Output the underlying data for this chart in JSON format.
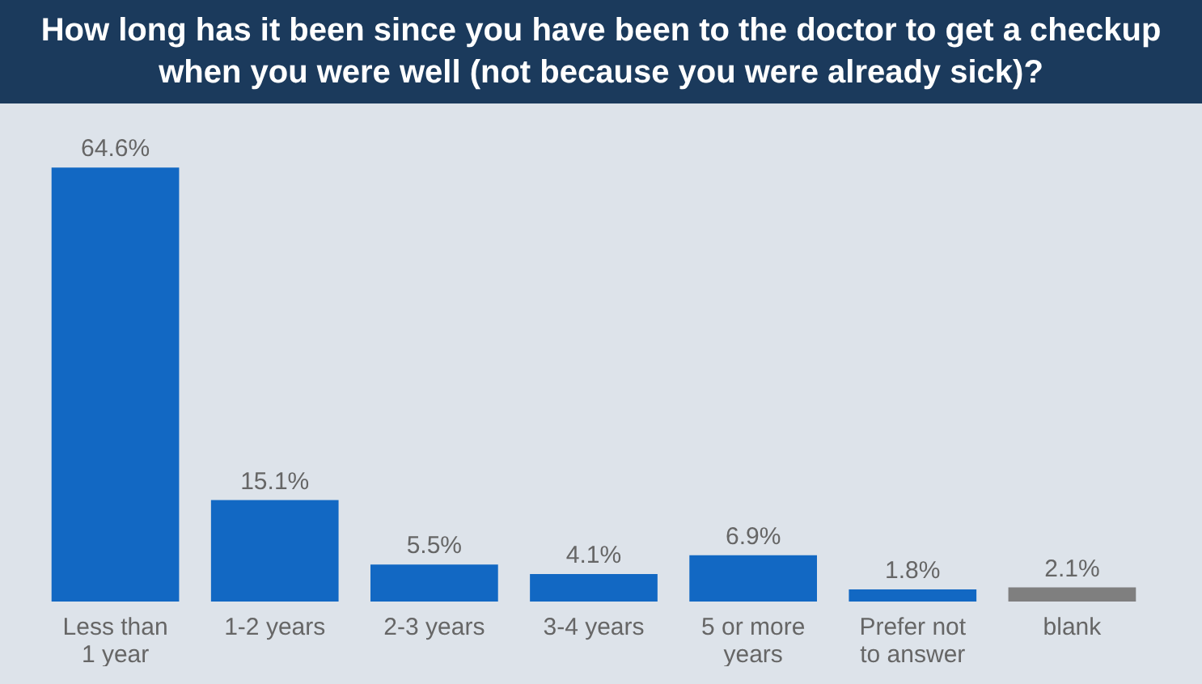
{
  "chart_data": {
    "type": "bar",
    "title": "How long has it been since you have been to the doctor to get a checkup when you were well (not because you were already sick)?",
    "categories": [
      "Less than 1 year",
      "1-2 years",
      "2-3 years",
      "3-4 years",
      "5 or more years",
      "Prefer not to answer",
      "blank"
    ],
    "values": [
      64.6,
      15.1,
      5.5,
      4.1,
      6.9,
      1.8,
      2.1
    ],
    "value_labels": [
      "64.6%",
      "15.1%",
      "5.5%",
      "4.1%",
      "6.9%",
      "1.8%",
      "2.1%"
    ],
    "colors": [
      "#1268c3",
      "#1268c3",
      "#1268c3",
      "#1268c3",
      "#1268c3",
      "#1268c3",
      "#7f7f7f"
    ],
    "grid": false
  }
}
